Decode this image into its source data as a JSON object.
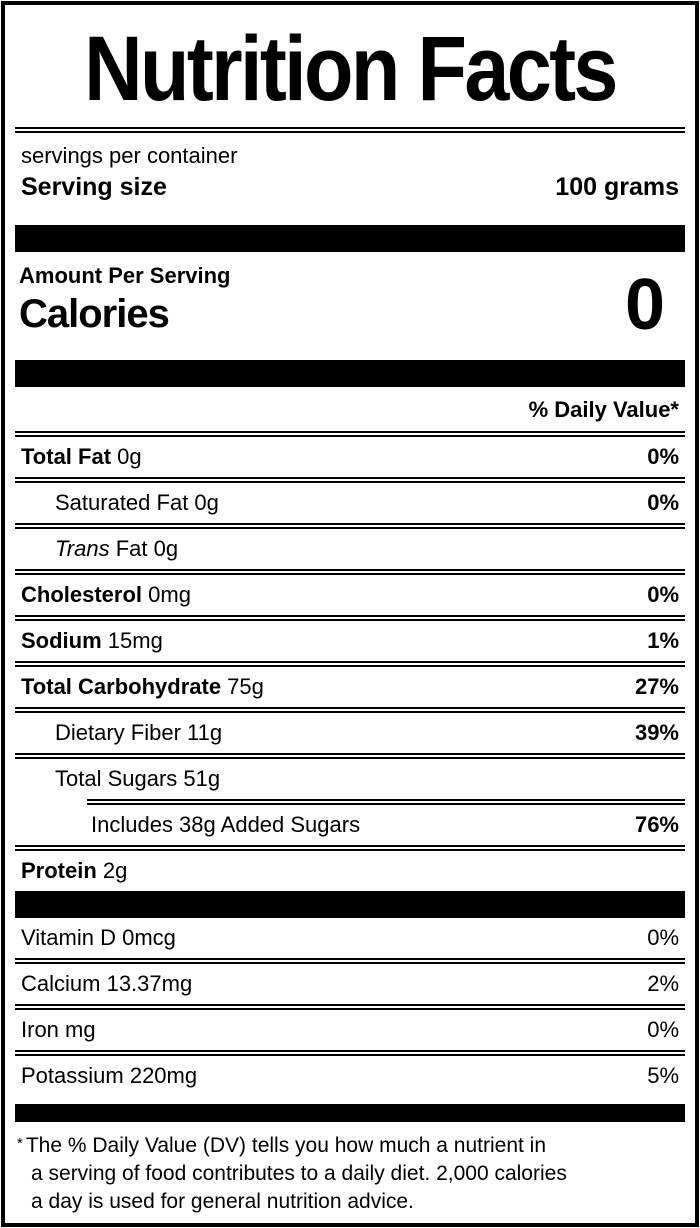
{
  "header": {
    "title": "Nutrition Facts",
    "servings_per_container": "servings per container",
    "serving_size_label": "Serving size",
    "serving_size_value": "100 grams"
  },
  "calories_section": {
    "amount_per_serving": "Amount Per Serving",
    "calories_label": "Calories",
    "calories_value": "0"
  },
  "daily_value_header": "% Daily Value*",
  "nutrients": [
    {
      "name": "Total Fat",
      "amount": "0g",
      "dv": "0%",
      "indent": 0,
      "bold": true
    },
    {
      "name": "Saturated Fat",
      "amount": "0g",
      "dv": "0%",
      "indent": 1,
      "bold": false
    },
    {
      "name": "Trans Fat",
      "amount": "0g",
      "dv": "",
      "indent": 1,
      "bold": false,
      "italic_first_word": true
    },
    {
      "name": "Cholesterol",
      "amount": "0mg",
      "dv": "0%",
      "indent": 0,
      "bold": true
    },
    {
      "name": "Sodium",
      "amount": "15mg",
      "dv": "1%",
      "indent": 0,
      "bold": true
    },
    {
      "name": "Total Carbohydrate",
      "amount": "75g",
      "dv": "27%",
      "indent": 0,
      "bold": true
    },
    {
      "name": "Dietary Fiber",
      "amount": "11g",
      "dv": "39%",
      "indent": 1,
      "bold": false
    },
    {
      "name": "Total Sugars",
      "amount": "51g",
      "dv": "",
      "indent": 1,
      "bold": false
    },
    {
      "name": "Includes 38g Added Sugars",
      "amount": "",
      "dv": "76%",
      "indent": 2,
      "bold": false,
      "sep_indent": true
    },
    {
      "name": "Protein",
      "amount": "2g",
      "dv": "",
      "indent": 0,
      "bold": true
    }
  ],
  "micronutrients": [
    {
      "name": "Vitamin D",
      "amount": "0mcg",
      "dv": "0%"
    },
    {
      "name": "Calcium",
      "amount": "13.37mg",
      "dv": "2%"
    },
    {
      "name": "Iron",
      "amount": "mg",
      "dv": "0%"
    },
    {
      "name": "Potassium",
      "amount": "220mg",
      "dv": "5%"
    }
  ],
  "footnote": {
    "marker": "*",
    "lines": [
      "The % Daily Value (DV) tells you how much a nutrient in",
      "a serving of food contributes to a daily diet. 2,000 calories",
      "a day is used for general nutrition advice."
    ]
  },
  "colors": {
    "text": "#000000",
    "background": "#fefefe",
    "bar": "#000000"
  }
}
